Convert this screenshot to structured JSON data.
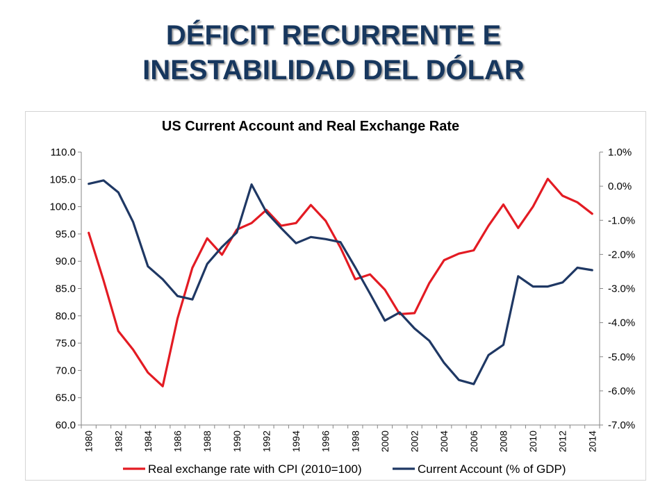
{
  "slide": {
    "title_line1": "DÉFICIT RECURRENTE E",
    "title_line2": "INESTABILIDAD DEL DÓLAR"
  },
  "chart_data": {
    "type": "line",
    "title": "US Current Account and Real Exchange Rate",
    "grid": false,
    "legend_placement": "bottom",
    "x": [
      1980,
      1981,
      1982,
      1983,
      1984,
      1985,
      1986,
      1987,
      1988,
      1989,
      1990,
      1991,
      1992,
      1993,
      1994,
      1995,
      1996,
      1997,
      1998,
      1999,
      2000,
      2001,
      2002,
      2003,
      2004,
      2005,
      2006,
      2007,
      2008,
      2009,
      2010,
      2011,
      2012,
      2013,
      2014
    ],
    "x_ticks": [
      "1980",
      "1982",
      "1984",
      "1986",
      "1988",
      "1990",
      "1992",
      "1994",
      "1996",
      "1998",
      "2000",
      "2002",
      "2004",
      "2006",
      "2008",
      "2010",
      "2012",
      "2014"
    ],
    "y_left": {
      "ylim": [
        60,
        110
      ],
      "ticks": [
        "60.0",
        "65.0",
        "70.0",
        "75.0",
        "80.0",
        "85.0",
        "90.0",
        "95.0",
        "100.0",
        "105.0",
        "110.0"
      ]
    },
    "y_right": {
      "ylim": [
        -7,
        1
      ],
      "ticks": [
        "-7.0%",
        "-6.0%",
        "-5.0%",
        "-4.0%",
        "-3.0%",
        "-2.0%",
        "-1.0%",
        "0.0%",
        "1.0%"
      ]
    },
    "series": [
      {
        "name": "Real exchange rate with CPI (2010=100)",
        "axis": "left",
        "color": "#E31B23",
        "values": [
          95.2,
          86.5,
          77.2,
          73.8,
          69.6,
          67.1,
          79.5,
          88.8,
          94.2,
          91.2,
          95.8,
          97.0,
          99.4,
          96.5,
          97.0,
          100.3,
          97.4,
          92.5,
          86.7,
          87.6,
          84.8,
          80.3,
          80.5,
          86.0,
          90.2,
          91.4,
          92.0,
          96.5,
          100.4,
          96.1,
          100.0,
          105.1,
          102.0,
          100.8,
          98.7
        ]
      },
      {
        "name": "Current Account (% of GDP)",
        "axis": "right",
        "color": "#1F3864",
        "values": [
          0.07,
          0.17,
          -0.18,
          -1.05,
          -2.35,
          -2.73,
          -3.22,
          -3.32,
          -2.28,
          -1.78,
          -1.36,
          0.05,
          -0.76,
          -1.23,
          -1.67,
          -1.49,
          -1.55,
          -1.64,
          -2.38,
          -3.15,
          -3.94,
          -3.7,
          -4.17,
          -4.53,
          -5.18,
          -5.68,
          -5.8,
          -4.95,
          -4.65,
          -2.64,
          -2.94,
          -2.94,
          -2.82,
          -2.39,
          -2.46
        ]
      }
    ]
  }
}
